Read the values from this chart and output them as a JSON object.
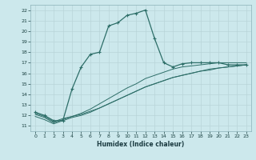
{
  "xlabel": "Humidex (Indice chaleur)",
  "bg_color": "#cce8ec",
  "grid_color": "#b8d4d8",
  "line_color": "#2d6e68",
  "ylim": [
    10.5,
    22.5
  ],
  "xlim": [
    -0.5,
    23.5
  ],
  "yticks": [
    11,
    12,
    13,
    14,
    15,
    16,
    17,
    18,
    19,
    20,
    21,
    22
  ],
  "xticks": [
    0,
    1,
    2,
    3,
    4,
    5,
    6,
    7,
    8,
    9,
    10,
    11,
    12,
    13,
    14,
    15,
    16,
    17,
    18,
    19,
    20,
    21,
    22,
    23
  ],
  "line1_x": [
    0,
    1,
    2,
    3,
    4,
    5,
    6,
    7,
    8,
    9,
    10,
    11,
    12,
    13,
    14,
    15,
    16,
    17,
    18,
    19,
    20,
    21,
    22,
    23
  ],
  "line1_y": [
    12.3,
    12.0,
    11.5,
    11.5,
    14.5,
    16.6,
    17.8,
    18.0,
    20.5,
    20.8,
    21.5,
    21.7,
    22.0,
    19.3,
    17.0,
    16.6,
    16.9,
    17.0,
    17.0,
    17.0,
    17.0,
    16.8,
    16.8,
    16.8
  ],
  "line2_x": [
    0,
    1,
    2,
    3,
    4,
    5,
    6,
    7,
    8,
    9,
    10,
    11,
    12,
    13,
    14,
    15,
    16,
    17,
    18,
    19,
    20,
    21,
    22,
    23
  ],
  "line2_y": [
    12.2,
    11.9,
    11.4,
    11.7,
    11.9,
    12.1,
    12.4,
    12.7,
    13.1,
    13.5,
    13.9,
    14.3,
    14.7,
    15.0,
    15.3,
    15.6,
    15.8,
    16.0,
    16.2,
    16.4,
    16.5,
    16.6,
    16.7,
    16.8
  ],
  "line3_x": [
    0,
    1,
    2,
    3,
    4,
    5,
    6,
    7,
    8,
    9,
    10,
    11,
    12,
    13,
    14,
    15,
    16,
    17,
    18,
    19,
    20,
    21,
    22,
    23
  ],
  "line3_y": [
    11.9,
    11.6,
    11.2,
    11.5,
    11.8,
    12.0,
    12.3,
    12.7,
    13.1,
    13.5,
    13.9,
    14.3,
    14.7,
    15.0,
    15.3,
    15.6,
    15.8,
    16.0,
    16.2,
    16.3,
    16.5,
    16.6,
    16.7,
    16.8
  ],
  "line4_x": [
    0,
    1,
    2,
    3,
    4,
    5,
    6,
    7,
    8,
    9,
    10,
    11,
    12,
    13,
    14,
    15,
    16,
    17,
    18,
    19,
    20,
    21,
    22,
    23
  ],
  "line4_y": [
    12.1,
    11.8,
    11.3,
    11.6,
    11.9,
    12.2,
    12.6,
    13.1,
    13.6,
    14.1,
    14.6,
    15.0,
    15.5,
    15.8,
    16.1,
    16.4,
    16.6,
    16.7,
    16.8,
    16.9,
    17.0,
    17.0,
    17.0,
    17.0
  ]
}
